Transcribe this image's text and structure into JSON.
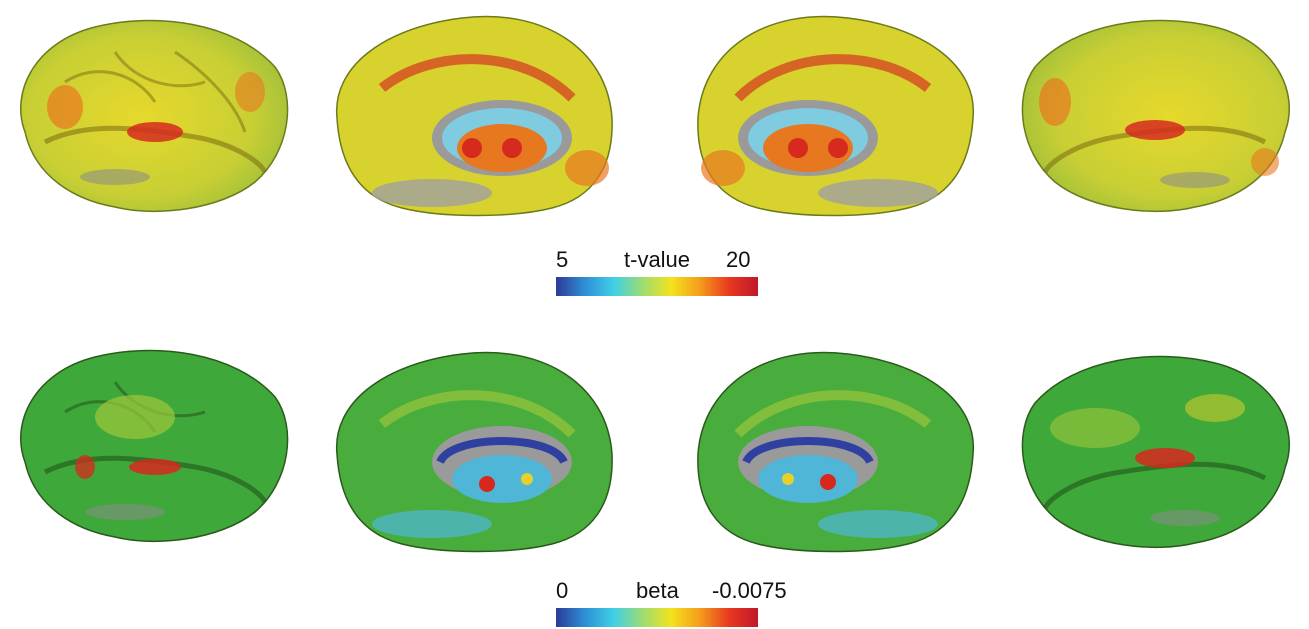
{
  "figure": {
    "rows": [
      {
        "id": "t-value-maps",
        "views": [
          "left-lateral",
          "left-medial",
          "right-medial",
          "right-lateral"
        ],
        "colorbar": {
          "min_label": "5",
          "title": "t-value",
          "max_label": "20",
          "stops": [
            "#2c3a96",
            "#2f8fd6",
            "#3fd0e6",
            "#9edc72",
            "#f4e21c",
            "#f59b1c",
            "#e8381f",
            "#c0182a"
          ]
        },
        "palette": {
          "base": "#b7c93a",
          "mid": "#e7d82c",
          "hot": "#e8781f",
          "peak": "#d62a1e",
          "cool": "#59c1e0",
          "gray": "#8a8a8a"
        }
      },
      {
        "id": "beta-maps",
        "views": [
          "left-lateral",
          "left-medial",
          "right-medial",
          "right-lateral"
        ],
        "colorbar": {
          "min_label": "0",
          "title": "beta",
          "max_label": "-0.0075",
          "stops": [
            "#2c3a96",
            "#2f8fd6",
            "#3fd0e6",
            "#9edc72",
            "#f4e21c",
            "#f59b1c",
            "#e8381f",
            "#c0182a"
          ]
        },
        "palette": {
          "base": "#3fa83a",
          "mid": "#9fc83a",
          "hot": "#e6d02a",
          "peak": "#d8281e",
          "cool": "#4fb6d8",
          "gray": "#8a8a8a"
        }
      }
    ]
  }
}
